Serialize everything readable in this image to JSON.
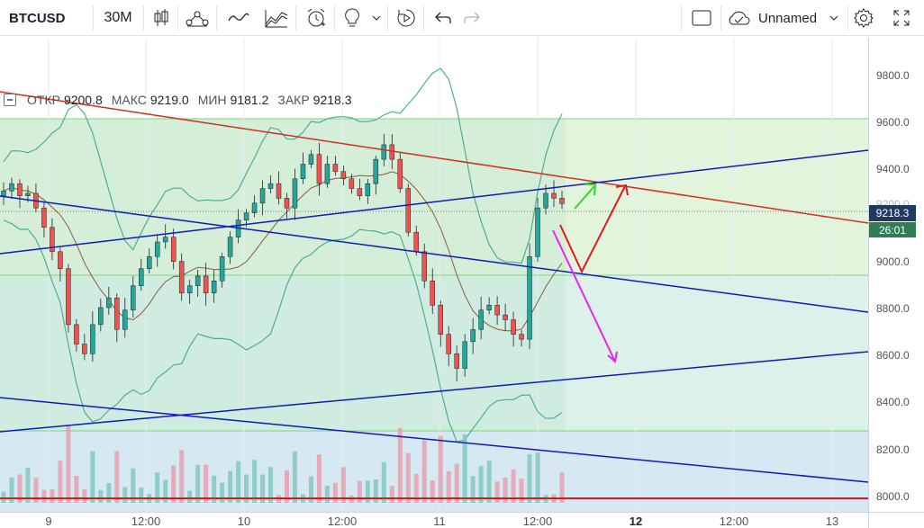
{
  "toolbar": {
    "symbol": "BTCUSD",
    "interval": "30M",
    "layout_name": "Unnamed",
    "icons": [
      "candles-icon",
      "indicators-icon",
      "line-tool-icon",
      "compare-icon",
      "alert-icon",
      "ideas-icon",
      "replay-icon",
      "undo-icon",
      "redo-icon",
      "fullscreen-square-icon",
      "cloud-icon",
      "settings-icon",
      "expand-icon"
    ]
  },
  "legend": {
    "open_label": "ОТКР",
    "open": "9200.8",
    "high_label": "МАКС",
    "high": "9219.0",
    "low_label": "МИН",
    "low": "9181.2",
    "close_label": "ЗАКР",
    "close": "9218.3"
  },
  "price_axis": {
    "ticks": [
      "9800.0",
      "9600.0",
      "9400.0",
      "9200.0",
      "9000.0",
      "8800.0",
      "8600.0",
      "8400.0",
      "8200.0",
      "8000.0"
    ],
    "current_price": "9218.3",
    "countdown": "26:01"
  },
  "time_axis": {
    "labels": [
      {
        "text": "9",
        "bold": false
      },
      {
        "text": "12:00",
        "bold": false
      },
      {
        "text": "10",
        "bold": false
      },
      {
        "text": "12:00",
        "bold": false
      },
      {
        "text": "11",
        "bold": false
      },
      {
        "text": "12:00",
        "bold": false
      },
      {
        "text": "12",
        "bold": true
      },
      {
        "text": "12:00",
        "bold": false
      },
      {
        "text": "13",
        "bold": false
      }
    ]
  },
  "colors": {
    "up": "#26a69a",
    "down": "#ef5350",
    "trend_blue": "#0d1bbf",
    "trend_red": "#d32f1f",
    "arrow_green": "#2bd82b",
    "arrow_red": "#e01a1a",
    "arrow_magenta": "#ee22ee"
  },
  "chart_data": {
    "type": "candlestick",
    "symbol": "BTCUSD",
    "interval": "30M",
    "ylim": [
      7950,
      9900
    ],
    "x_labels": [
      "9",
      "12:00",
      "10",
      "12:00",
      "11",
      "12:00",
      "12",
      "12:00",
      "13"
    ],
    "last": {
      "open": 9200.8,
      "high": 9219.0,
      "low": 9181.2,
      "close": 9218.3
    },
    "closes": [
      9270,
      9300,
      9250,
      9260,
      9200,
      9120,
      9020,
      8950,
      8720,
      8640,
      8600,
      8720,
      8790,
      8830,
      8700,
      8780,
      8880,
      8950,
      9000,
      9060,
      9080,
      8980,
      8850,
      8880,
      8920,
      8850,
      8900,
      9000,
      9080,
      9150,
      9180,
      9220,
      9280,
      9300,
      9240,
      9200,
      9320,
      9380,
      9420,
      9300,
      9380,
      9350,
      9320,
      9280,
      9250,
      9300,
      9400,
      9460,
      9400,
      9280,
      9100,
      9020,
      8900,
      8800,
      8680,
      8600,
      8540,
      8650,
      8700,
      8780,
      8800,
      8760,
      8740,
      8680,
      8660,
      9000,
      9200,
      9260,
      9240,
      9218
    ]
  },
  "drawings": [
    {
      "tool": "trend_line",
      "color": "red",
      "from": {
        "t": "9 00:00",
        "price": 9730
      },
      "to": {
        "t": "13 02:00",
        "price": 9160
      }
    },
    {
      "tool": "trend_line",
      "color": "blue",
      "from": {
        "t": "9 00:00",
        "price": 9040
      },
      "to": {
        "t": "13 02:00",
        "price": 9480
      }
    },
    {
      "tool": "trend_line",
      "color": "blue",
      "from": {
        "t": "9 00:00",
        "price": 9290
      },
      "to": {
        "t": "13 02:00",
        "price": 8790
      }
    },
    {
      "tool": "trend_line",
      "color": "blue",
      "from": {
        "t": "9 00:00",
        "price": 8280
      },
      "to": {
        "t": "13 02:00",
        "price": 8620
      }
    },
    {
      "tool": "trend_line",
      "color": "blue",
      "from": {
        "t": "9 00:00",
        "price": 8430
      },
      "to": {
        "t": "13 02:00",
        "price": 8060
      }
    }
  ]
}
